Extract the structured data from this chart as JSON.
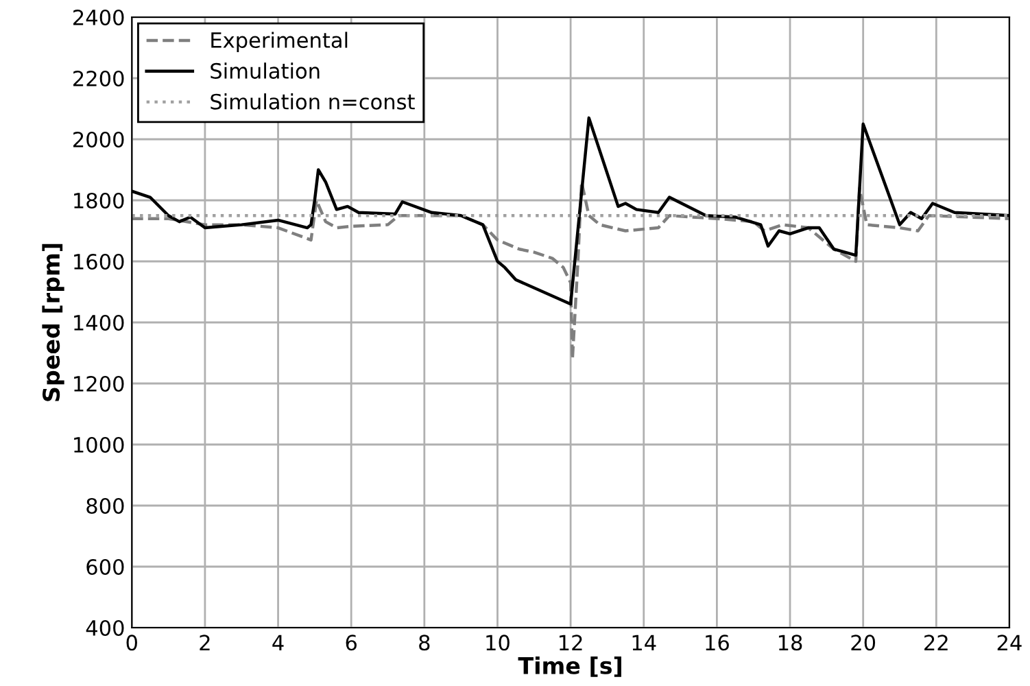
{
  "chart_data": {
    "type": "line",
    "xlabel": "Time [s]",
    "ylabel": "Speed [rpm]",
    "xlim": [
      0,
      24
    ],
    "xticks": [
      0,
      2,
      4,
      6,
      8,
      10,
      12,
      14,
      16,
      18,
      20,
      22,
      24
    ],
    "ylim": [
      400,
      2400
    ],
    "yticks": [
      400,
      600,
      800,
      1000,
      1200,
      1400,
      1600,
      1800,
      2000,
      2200,
      2400
    ],
    "grid": true,
    "legend": "top left",
    "series": [
      {
        "name": "Experimental",
        "color": "#7f7f7f",
        "line_style": "dashed",
        "x": [
          0,
          1,
          2,
          3,
          4,
          4.9,
          5.05,
          5.3,
          5.6,
          6,
          7,
          7.3,
          9,
          9.6,
          10,
          10.6,
          11,
          11.5,
          11.8,
          12.0,
          12.05,
          12.2,
          12.3,
          12.5,
          12.8,
          13.5,
          14.4,
          14.7,
          16,
          17,
          17.3,
          17.8,
          18.5,
          19.2,
          19.8,
          19.9,
          20.1,
          21,
          21.5,
          21.8,
          24
        ],
        "values": [
          1740,
          1740,
          1720,
          1720,
          1710,
          1670,
          1800,
          1730,
          1710,
          1715,
          1720,
          1750,
          1750,
          1720,
          1670,
          1640,
          1630,
          1610,
          1580,
          1530,
          1280,
          1600,
          1860,
          1750,
          1720,
          1700,
          1710,
          1750,
          1740,
          1730,
          1700,
          1720,
          1710,
          1640,
          1600,
          1840,
          1720,
          1710,
          1700,
          1750,
          1740
        ]
      },
      {
        "name": "Simulation",
        "color": "#000000",
        "line_style": "solid",
        "x": [
          0,
          0.5,
          1,
          1.3,
          1.6,
          2,
          2.5,
          3,
          4,
          4.8,
          4.9,
          5.0,
          5.1,
          5.3,
          5.6,
          5.9,
          6.2,
          7.2,
          7.4,
          8.2,
          9,
          9.6,
          10,
          10.2,
          10.5,
          12.0,
          12.5,
          13.3,
          13.5,
          13.8,
          14.4,
          14.7,
          15.7,
          16.5,
          17.2,
          17.4,
          17.7,
          18,
          18.5,
          18.8,
          19.2,
          19.8,
          20.0,
          21.0,
          21.3,
          21.6,
          21.9,
          22.5,
          24
        ],
        "values": [
          1830,
          1810,
          1750,
          1730,
          1745,
          1710,
          1715,
          1720,
          1735,
          1710,
          1720,
          1800,
          1900,
          1860,
          1770,
          1780,
          1760,
          1755,
          1795,
          1760,
          1750,
          1720,
          1600,
          1580,
          1540,
          1460,
          2070,
          1780,
          1790,
          1770,
          1760,
          1810,
          1750,
          1745,
          1720,
          1650,
          1700,
          1690,
          1710,
          1710,
          1640,
          1620,
          2050,
          1720,
          1760,
          1740,
          1790,
          1760,
          1750
        ]
      },
      {
        "name": "Simulation n=const",
        "color": "#a0a0a0",
        "line_style": "dotted",
        "x": [
          0,
          24
        ],
        "values": [
          1750,
          1750
        ]
      }
    ]
  }
}
